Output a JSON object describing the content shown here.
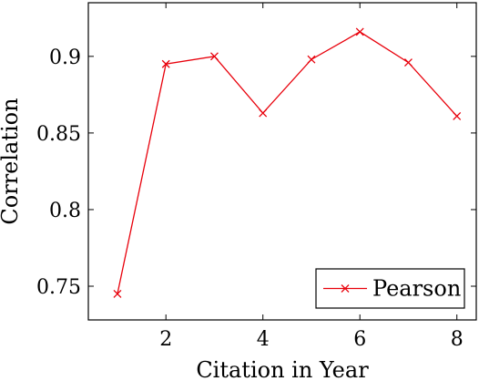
{
  "chart_data": {
    "type": "line",
    "title": "",
    "xlabel": "Citation in Year",
    "ylabel": "Correlation",
    "xlim": [
      0.4,
      8.4
    ],
    "ylim": [
      0.728,
      0.935
    ],
    "xticks": [
      2,
      4,
      6,
      8
    ],
    "xtick_labels": [
      "2",
      "4",
      "6",
      "8"
    ],
    "yticks": [
      0.75,
      0.8,
      0.85,
      0.9
    ],
    "ytick_labels": [
      "0.75",
      "0.8",
      "0.85",
      "0.9"
    ],
    "grid": false,
    "legend_position": "bottom-right",
    "series": [
      {
        "name": "Pearson",
        "color": "#e8000b",
        "marker": "x",
        "x": [
          1,
          2,
          3,
          4,
          5,
          6,
          7,
          8
        ],
        "y": [
          0.745,
          0.895,
          0.9,
          0.863,
          0.898,
          0.916,
          0.896,
          0.861
        ]
      }
    ]
  }
}
